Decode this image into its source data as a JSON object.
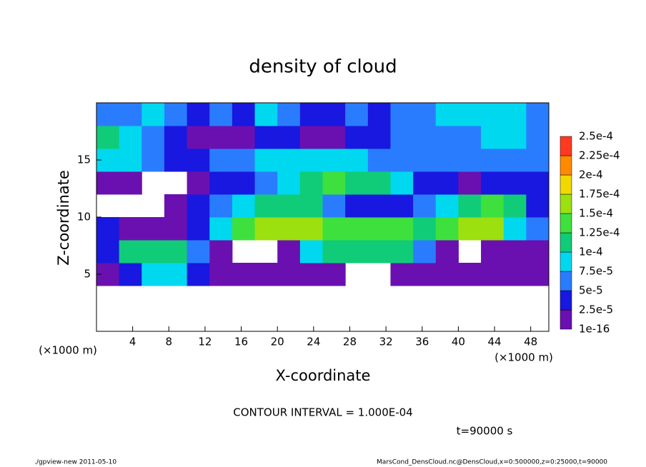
{
  "chart_data": {
    "type": "heatmap",
    "title": "density of cloud",
    "xlabel": "X-coordinate",
    "ylabel": "Z-coordinate",
    "x_unit_label": "(×1000 m)",
    "x_unit_label_right": "(×1000 m)",
    "contour_note": "CONTOUR INTERVAL = 1.000E-04",
    "time_note": "t=90000 s",
    "footer_left": "./gpview-new  2011-05-10",
    "footer_right": "MarsCond_DensCloud.nc@DensCloud,x=0:500000,z=0:25000,t=90000",
    "xlim": [
      0,
      50
    ],
    "ylim": [
      0,
      20
    ],
    "xticks": [
      4,
      8,
      12,
      16,
      20,
      24,
      28,
      32,
      36,
      40,
      44,
      48
    ],
    "yticks": [
      5,
      10,
      15
    ],
    "x_bins": [
      0,
      2.5,
      5,
      7.5,
      10,
      12.5,
      15,
      17.5,
      20,
      22.5,
      25,
      27.5,
      30,
      32.5,
      35,
      37.5,
      40,
      42.5,
      45,
      47.5,
      50
    ],
    "z_bins": [
      0,
      2,
      4,
      6,
      8,
      10,
      12,
      14,
      16,
      18,
      20
    ],
    "values": [
      [
        null,
        null,
        null,
        null,
        null,
        null,
        null,
        null,
        null,
        null,
        null,
        null,
        null,
        null,
        null,
        null,
        null,
        null,
        null,
        null
      ],
      [
        null,
        null,
        null,
        null,
        null,
        null,
        null,
        null,
        null,
        null,
        null,
        null,
        null,
        null,
        null,
        null,
        null,
        null,
        null,
        null
      ],
      [
        1e-05,
        4e-05,
        8e-05,
        8e-05,
        3e-05,
        1e-05,
        1e-05,
        1e-05,
        1e-05,
        1e-05,
        1e-05,
        null,
        null,
        1e-05,
        1e-05,
        1e-05,
        1e-05,
        1e-05,
        1e-05,
        1e-05
      ],
      [
        3e-05,
        0.00011,
        0.00011,
        0.00011,
        6e-05,
        1e-05,
        null,
        null,
        1e-05,
        8e-05,
        0.00011,
        0.00011,
        0.00011,
        0.00011,
        6e-05,
        1e-05,
        null,
        1e-05,
        1e-05,
        1e-05
      ],
      [
        3e-05,
        1e-05,
        1e-05,
        1e-05,
        3e-05,
        8e-05,
        0.00014,
        0.00016,
        0.00017,
        0.00015,
        0.00013,
        0.00013,
        0.00014,
        0.00013,
        0.00012,
        0.00014,
        0.00015,
        0.00016,
        9e-05,
        5e-05
      ],
      [
        null,
        null,
        null,
        1e-05,
        3e-05,
        6e-05,
        9e-05,
        0.00011,
        0.00012,
        0.00012,
        7e-05,
        3e-05,
        3e-05,
        3e-05,
        6e-05,
        9e-05,
        0.00012,
        0.00013,
        0.0001,
        4e-05
      ],
      [
        1e-05,
        1e-05,
        null,
        null,
        1e-05,
        3e-05,
        3e-05,
        6e-05,
        9e-05,
        0.00012,
        0.00013,
        0.00012,
        0.00011,
        8e-05,
        3e-05,
        3e-05,
        1e-05,
        3e-05,
        3e-05,
        3e-05
      ],
      [
        8e-05,
        8e-05,
        6e-05,
        3e-05,
        4e-05,
        6e-05,
        6e-05,
        8e-05,
        8e-05,
        9e-05,
        8e-05,
        8e-05,
        7e-05,
        6e-05,
        6e-05,
        6e-05,
        6e-05,
        6e-05,
        6e-05,
        6e-05
      ],
      [
        0.00011,
        9e-05,
        6e-05,
        3e-05,
        1e-05,
        1e-05,
        1e-05,
        3e-05,
        3e-05,
        1e-05,
        1e-05,
        3e-05,
        3e-05,
        6e-05,
        6e-05,
        6e-05,
        6e-05,
        8e-05,
        8e-05,
        6e-05
      ],
      [
        6e-05,
        6e-05,
        8e-05,
        6e-05,
        4e-05,
        6e-05,
        4e-05,
        8e-05,
        6e-05,
        3e-05,
        3e-05,
        6e-05,
        4e-05,
        6e-05,
        6e-05,
        8e-05,
        8e-05,
        9e-05,
        8e-05,
        6e-05
      ]
    ],
    "colorbar": {
      "ticks": [
        {
          "value": 1e-16,
          "label": "1e-16"
        },
        {
          "value": 2.5e-05,
          "label": "2.5e-5"
        },
        {
          "value": 5e-05,
          "label": "5e-5"
        },
        {
          "value": 7.5e-05,
          "label": "7.5e-5"
        },
        {
          "value": 0.0001,
          "label": "1e-4"
        },
        {
          "value": 0.000125,
          "label": "1.25e-4"
        },
        {
          "value": 0.00015,
          "label": "1.5e-4"
        },
        {
          "value": 0.000175,
          "label": "1.75e-4"
        },
        {
          "value": 0.0002,
          "label": "2e-4"
        },
        {
          "value": 0.000225,
          "label": "2.25e-4"
        },
        {
          "value": 0.00025,
          "label": "2.5e-4"
        }
      ],
      "colors": [
        "#6a10b0",
        "#1818e0",
        "#2a7cff",
        "#00d8f0",
        "#10cc78",
        "#3ee03e",
        "#9ce010",
        "#f0d800",
        "#ff8a00",
        "#ff3a20"
      ]
    }
  }
}
